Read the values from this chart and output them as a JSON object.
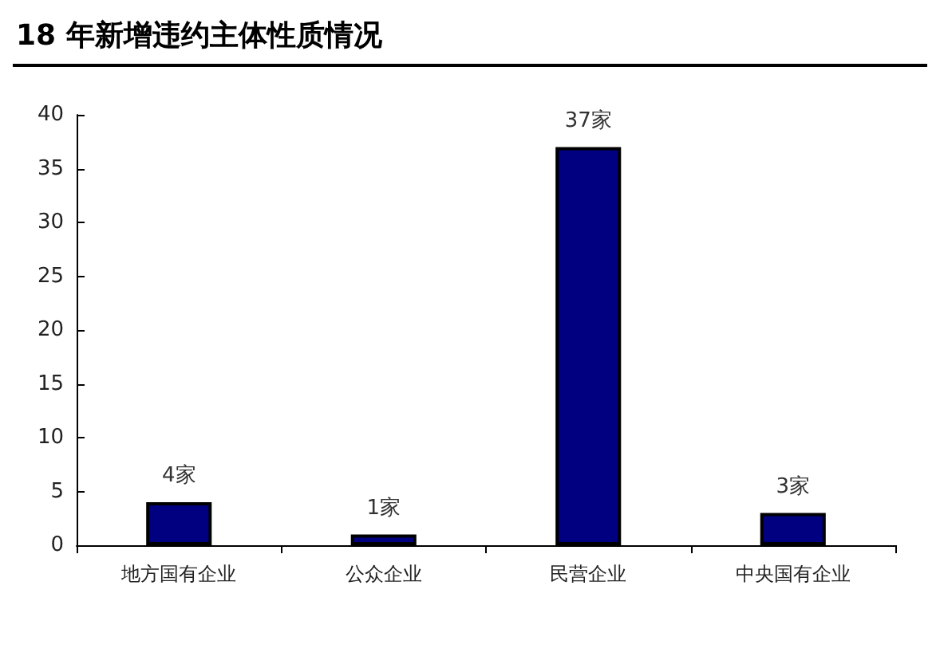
{
  "chart_data": {
    "type": "bar",
    "title": "18 年新增违约主体性质情况",
    "categories": [
      "地方国有企业",
      "公众企业",
      "民营企业",
      "中央国有企业"
    ],
    "values": [
      4,
      1,
      37,
      3
    ],
    "color": "#000080",
    "value_labels": [
      "4家",
      "1家",
      "37家",
      "3家"
    ],
    "ylim": [
      0,
      40
    ],
    "yticks": [
      0,
      5,
      10,
      15,
      20,
      25,
      30,
      35,
      40
    ],
    "grid": false
  }
}
